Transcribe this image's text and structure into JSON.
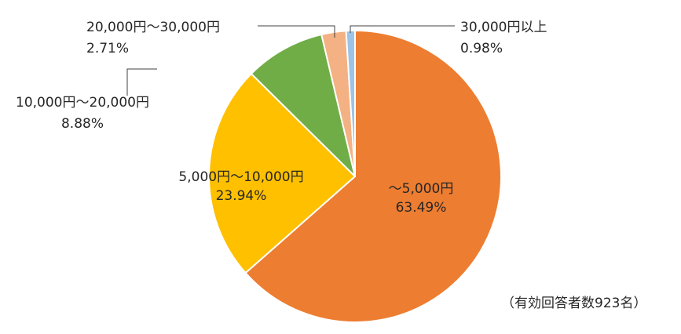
{
  "chart_data": {
    "type": "pie",
    "title": "",
    "start_angle_deg": 0,
    "direction": "clockwise",
    "slices": [
      {
        "label": "〜5,000円",
        "value": 63.49,
        "value_text": "63.49%",
        "color": "#ED7D31"
      },
      {
        "label": "5,000円〜10,000円",
        "value": 23.94,
        "value_text": "23.94%",
        "color": "#FFC000"
      },
      {
        "label": "10,000円〜20,000円",
        "value": 8.88,
        "value_text": "8.88%",
        "color": "#70AD47"
      },
      {
        "label": "20,000円〜30,000円",
        "value": 2.71,
        "value_text": "2.71%",
        "color": "#F4B183"
      },
      {
        "label": "30,000円以上",
        "value": 0.98,
        "value_text": "0.98%",
        "color": "#9DC3E6"
      }
    ],
    "note": "（有効回答者数923名）"
  }
}
